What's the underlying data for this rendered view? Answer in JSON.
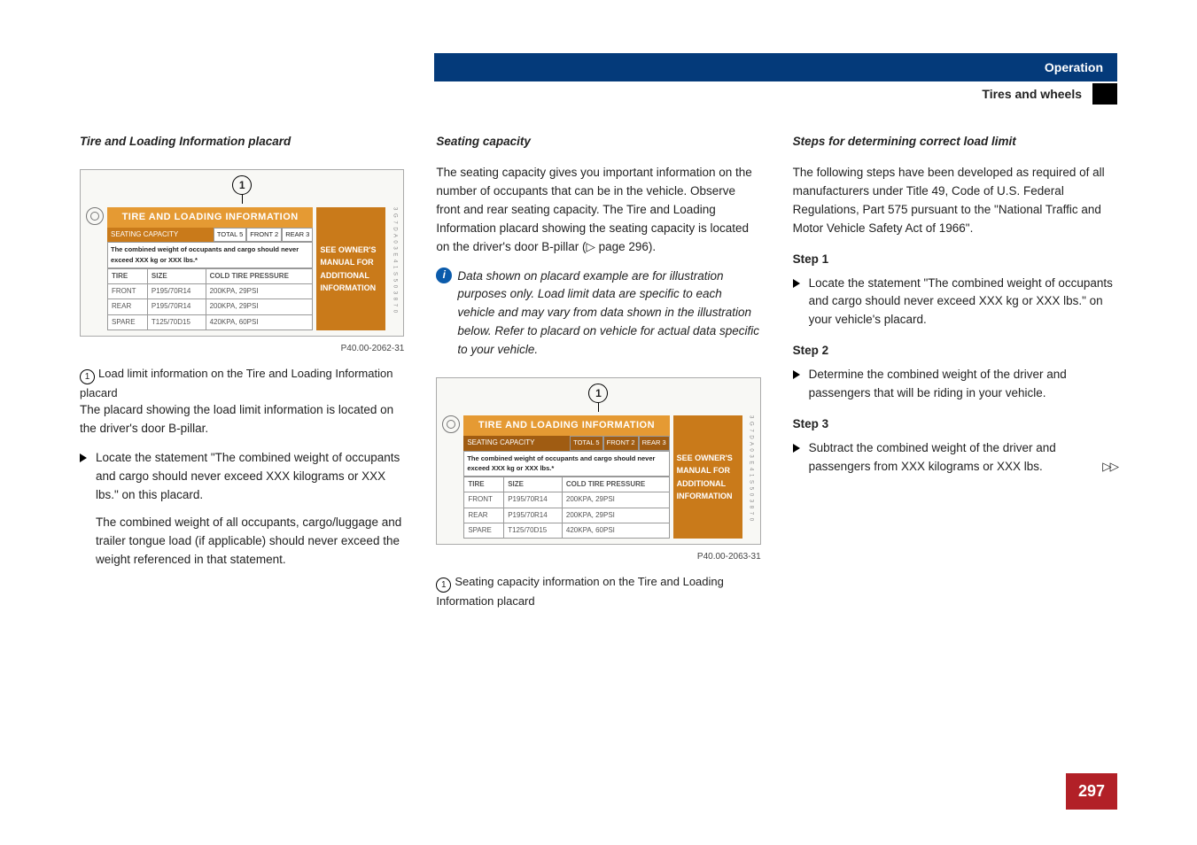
{
  "header": {
    "category": "Operation",
    "section": "Tires and wheels"
  },
  "page_number": "297",
  "col1": {
    "heading": "Tire and Loading Information placard",
    "caption_num": "1",
    "caption_text": "Load limit information on the Tire and Loading Information placard",
    "para1": "The placard showing the load limit information is located on the driver's door B-pillar.",
    "bullet1": "Locate the statement \"The combined weight of occupants and cargo should never exceed XXX kilograms or XXX lbs.\" on this placard.",
    "indent1": "The combined weight of all occupants, cargo/luggage and trailer tongue load (if applicable) should never exceed the weight referenced in that statement."
  },
  "col2": {
    "heading": "Seating capacity",
    "para1": "The seating capacity gives you important information on the number of occupants that can be in the vehicle. Observe front and rear seating capacity. The Tire and Loading Information placard showing the seating capacity is located on the driver's door B-pillar (▷ page 296).",
    "info_text": "Data shown on placard example are for illustration purposes only. Load limit data are specific to each vehicle and may vary from data shown in the illustration below. Refer to placard on vehicle for actual data specific to your vehicle.",
    "caption_num": "1",
    "caption_text": "Seating capacity information on the Tire and Loading Information placard"
  },
  "col3": {
    "heading": "Steps for determining correct load limit",
    "para1": "The following steps have been developed as required of all manufacturers under Title 49, Code of U.S. Federal Regulations, Part 575 pursuant to the \"National Traffic and Motor Vehicle Safety Act of 1966\".",
    "step1_head": "Step 1",
    "step1_text": "Locate the statement \"The combined weight of occupants and cargo should never exceed XXX kg or XXX lbs.\" on your vehicle's placard.",
    "step2_head": "Step 2",
    "step2_text": "Determine the combined weight of the driver and passengers that will be riding in your vehicle.",
    "step3_head": "Step 3",
    "step3_text": "Subtract the combined weight of the driver and passengers from XXX kilograms or XXX lbs.",
    "cont": "▷▷"
  },
  "placard": {
    "title": "TIRE AND LOADING INFORMATION",
    "seating_label": "SEATING CAPACITY",
    "seat_total": "TOTAL  5",
    "seat_front": "FRONT  2",
    "seat_rear": "REAR  3",
    "combined": "The combined weight of occupants and cargo should never exceed XXX kg or XXX lbs.*",
    "see1": "SEE OWNER'S",
    "see2": "MANUAL FOR",
    "see3": "ADDITIONAL",
    "see4": "INFORMATION",
    "columns": [
      "TIRE",
      "SIZE",
      "COLD TIRE PRESSURE"
    ],
    "rows": [
      [
        "FRONT",
        "P195/70R14",
        "200KPA, 29PSI"
      ],
      [
        "REAR",
        "P195/70R14",
        "200KPA, 29PSI"
      ],
      [
        "SPARE",
        "T125/70D15",
        "420KPA, 60PSI"
      ]
    ],
    "ref1": "P40.00-2062-31",
    "ref2": "P40.00-2063-31",
    "vcode": "3 G 7 D A 0 3 E 4 1 S 5 0 3 8 7 0"
  }
}
